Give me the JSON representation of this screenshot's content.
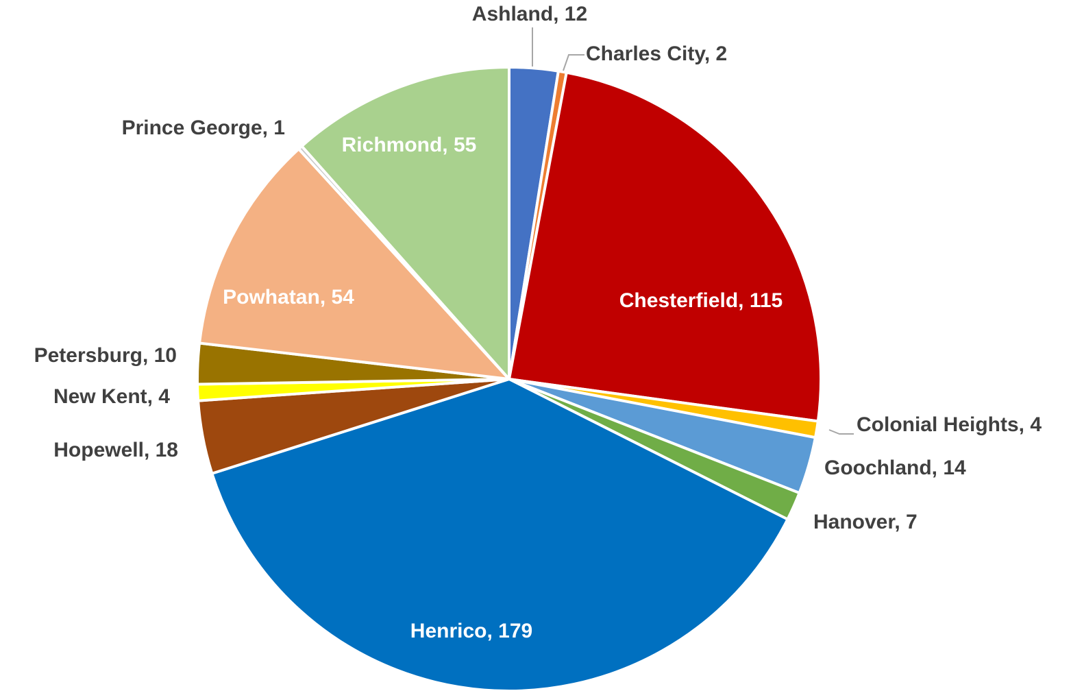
{
  "chart_data": {
    "type": "pie",
    "categories": [
      "Ashland",
      "Charles City",
      "Chesterfield",
      "Colonial Heights",
      "Goochland",
      "Hanover",
      "Henrico",
      "Hopewell",
      "New Kent",
      "Petersburg",
      "Powhatan",
      "Prince George",
      "Richmond"
    ],
    "values": [
      12,
      2,
      115,
      4,
      14,
      7,
      179,
      18,
      4,
      10,
      54,
      1,
      55
    ],
    "value_labels": [
      "Ashland, 12",
      "Charles City, 2",
      "Chesterfield, 115",
      "Colonial Heights, 4",
      "Goochland, 14",
      "Hanover, 7",
      "Henrico, 179",
      "Hopewell, 18",
      "New Kent, 4",
      "Petersburg, 10",
      "Powhatan, 54",
      "Prince George, 1",
      "Richmond, 55"
    ],
    "colors": [
      "#4472c4",
      "#ed7d31",
      "#c00000",
      "#ffc000",
      "#5b9bd5",
      "#70ad47",
      "#0070c0",
      "#9e480e",
      "#ffff00",
      "#997300",
      "#f4b183",
      "#c9c9c9",
      "#a9d18e"
    ]
  }
}
